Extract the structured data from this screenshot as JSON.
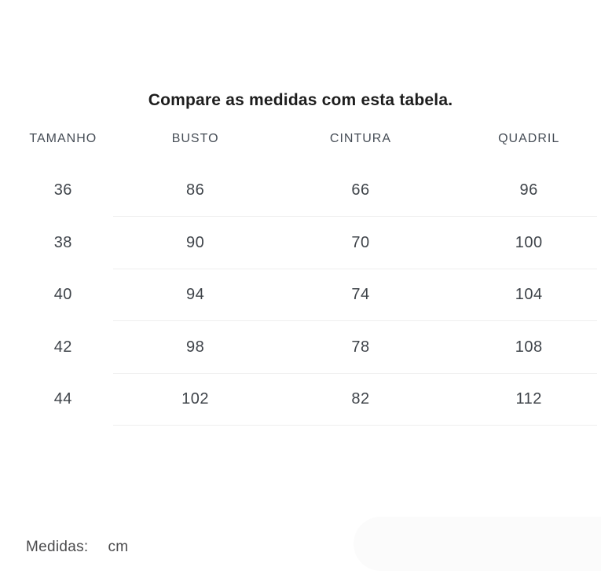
{
  "title": "Compare as medidas com esta tabela.",
  "table": {
    "headers": [
      "TAMANHO",
      "BUSTO",
      "CINTURA",
      "QUADRIL"
    ],
    "rows": [
      [
        "36",
        "86",
        "66",
        "96"
      ],
      [
        "38",
        "90",
        "70",
        "100"
      ],
      [
        "40",
        "94",
        "74",
        "104"
      ],
      [
        "42",
        "98",
        "78",
        "108"
      ],
      [
        "44",
        "102",
        "82",
        "112"
      ]
    ]
  },
  "footer": {
    "label": "Medidas:",
    "unit": "cm"
  },
  "colors": {
    "background": "#ffffff",
    "title_text": "#1d1d1d",
    "header_text": "#464d56",
    "cell_text": "#3f444a",
    "footer_text": "#4a4a4c",
    "separator_line": "#efefef",
    "pill_shape": "#fbfbfb"
  }
}
